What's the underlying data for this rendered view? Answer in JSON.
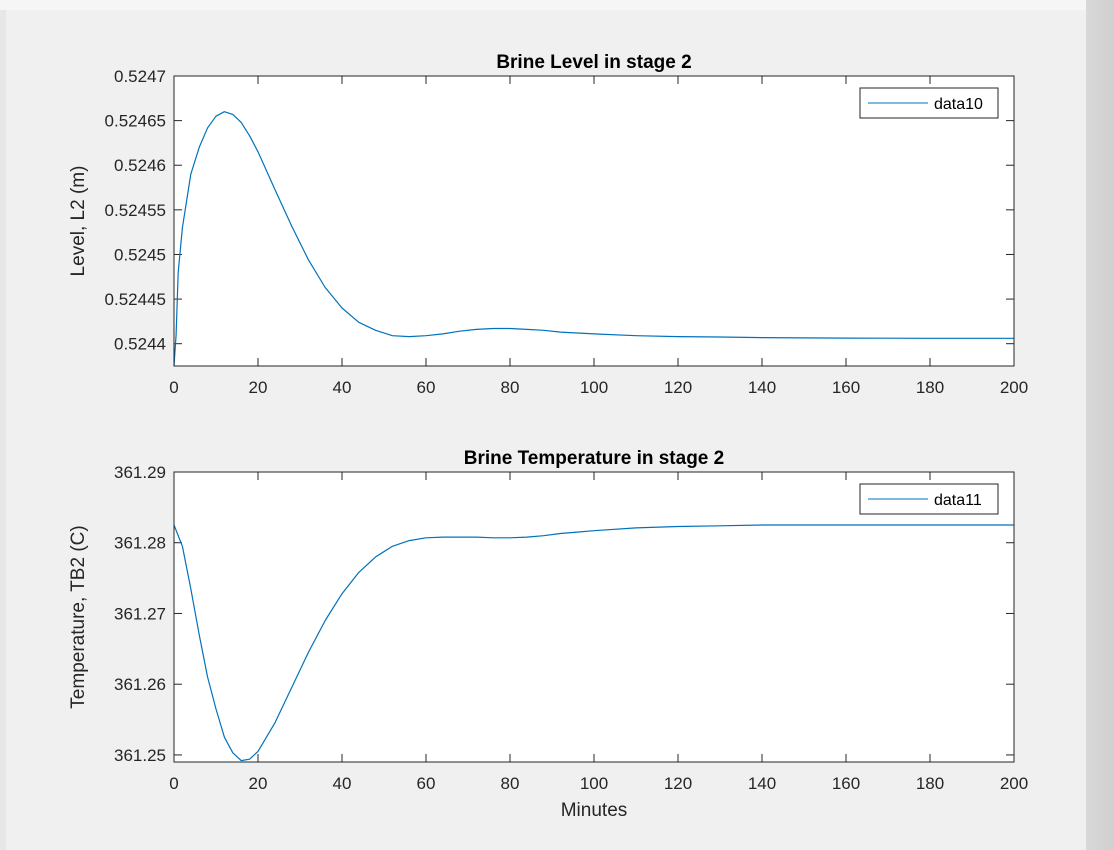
{
  "chart_data": [
    {
      "type": "line",
      "title": "Brine Level in stage 2",
      "xlabel": "",
      "ylabel": "Level,  L2  (m)",
      "xlim": [
        0,
        200
      ],
      "ylim": [
        0.524375,
        0.5247
      ],
      "xticks": [
        0,
        20,
        40,
        60,
        80,
        100,
        120,
        140,
        160,
        180,
        200
      ],
      "xtick_labels": [
        "0",
        "20",
        "40",
        "60",
        "80",
        "100",
        "120",
        "140",
        "160",
        "180",
        "200"
      ],
      "yticks": [
        0.5244,
        0.52445,
        0.5245,
        0.52455,
        0.5246,
        0.52465,
        0.5247
      ],
      "ytick_labels": [
        "0.5244",
        "0.52445",
        "0.5245",
        "0.52455",
        "0.5246",
        "0.52465",
        "0.5247"
      ],
      "grid": false,
      "legend_position": "top-right",
      "series": [
        {
          "name": "data10",
          "color": "#0072bd",
          "x": [
            0,
            0.5,
            1,
            2,
            3,
            4,
            6,
            8,
            10,
            12,
            14,
            16,
            18,
            20,
            24,
            28,
            32,
            36,
            40,
            44,
            48,
            52,
            56,
            60,
            64,
            68,
            72,
            76,
            80,
            84,
            88,
            92,
            96,
            100,
            110,
            120,
            130,
            140,
            150,
            160,
            170,
            180,
            190,
            200
          ],
          "y": [
            0.524375,
            0.52441,
            0.52448,
            0.52453,
            0.52456,
            0.52459,
            0.52462,
            0.524642,
            0.524655,
            0.52466,
            0.524657,
            0.524648,
            0.524633,
            0.524615,
            0.524573,
            0.524532,
            0.524494,
            0.524463,
            0.52444,
            0.524424,
            0.524415,
            0.524409,
            0.524408,
            0.524409,
            0.524411,
            0.524414,
            0.524416,
            0.524417,
            0.524417,
            0.524416,
            0.524415,
            0.524413,
            0.524412,
            0.524411,
            0.524409,
            0.524408,
            0.5244075,
            0.5244068,
            0.5244065,
            0.5244063,
            0.5244062,
            0.524406,
            0.524406,
            0.524406
          ]
        }
      ]
    },
    {
      "type": "line",
      "title": "Brine Temperature in stage 2",
      "xlabel": "Minutes",
      "ylabel": "Temperature,  TB2  (C)",
      "xlim": [
        0,
        200
      ],
      "ylim": [
        361.249,
        361.29
      ],
      "xticks": [
        0,
        20,
        40,
        60,
        80,
        100,
        120,
        140,
        160,
        180,
        200
      ],
      "xtick_labels": [
        "0",
        "20",
        "40",
        "60",
        "80",
        "100",
        "120",
        "140",
        "160",
        "180",
        "200"
      ],
      "yticks": [
        361.25,
        361.26,
        361.27,
        361.28,
        361.29
      ],
      "ytick_labels": [
        "361.25",
        "361.26",
        "361.27",
        "361.28",
        "361.29"
      ],
      "grid": false,
      "legend_position": "top-right",
      "series": [
        {
          "name": "data11",
          "color": "#0072bd",
          "x": [
            0,
            2,
            4,
            6,
            8,
            10,
            12,
            14,
            16,
            18,
            20,
            24,
            28,
            32,
            36,
            40,
            44,
            48,
            52,
            56,
            60,
            64,
            68,
            72,
            76,
            80,
            84,
            88,
            92,
            96,
            100,
            110,
            120,
            130,
            140,
            150,
            160,
            170,
            180,
            190,
            200
          ],
          "y": [
            361.2825,
            361.2795,
            361.2735,
            361.267,
            361.261,
            361.2565,
            361.2525,
            361.2503,
            361.2492,
            361.2494,
            361.2505,
            361.2545,
            361.2595,
            361.2645,
            361.269,
            361.2728,
            361.2758,
            361.278,
            361.2795,
            361.2803,
            361.2807,
            361.2808,
            361.2808,
            361.2808,
            361.2807,
            361.2807,
            361.2808,
            361.281,
            361.2813,
            361.2815,
            361.2817,
            361.2821,
            361.2823,
            361.2824,
            361.2825,
            361.2825,
            361.2825,
            361.2825,
            361.2825,
            361.2825,
            361.2825
          ]
        }
      ]
    }
  ]
}
